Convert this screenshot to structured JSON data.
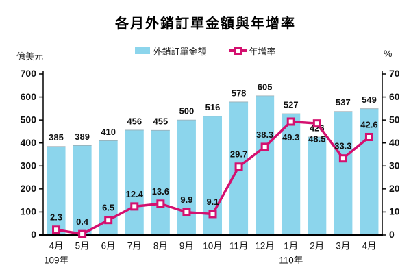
{
  "title": "各月外銷訂單金額與年增率",
  "left_unit": "億美元",
  "right_unit": "%",
  "legend": [
    {
      "label": "外銷訂單金額",
      "swatch": "bar-swatch-icon"
    },
    {
      "label": "年增率",
      "swatch": "line-marker-icon"
    }
  ],
  "chart_data": {
    "type": "bar+line",
    "title": "各月外銷訂單金額與年增率",
    "categories": [
      "4月",
      "5月",
      "6月",
      "7月",
      "8月",
      "9月",
      "10月",
      "11月",
      "12月",
      "1月",
      "2月",
      "3月",
      "4月"
    ],
    "year_labels": [
      {
        "text": "109年",
        "slot": 0
      },
      {
        "text": "110年",
        "slot": 9
      }
    ],
    "series": [
      {
        "name": "外銷訂單金額",
        "type": "bar",
        "axis": "left",
        "values": [
          385,
          389,
          410,
          456,
          455,
          500,
          516,
          578,
          605,
          527,
          426,
          537,
          549
        ]
      },
      {
        "name": "年增率",
        "type": "line",
        "axis": "right",
        "values": [
          2.3,
          0.4,
          6.5,
          12.4,
          13.6,
          9.9,
          9.1,
          29.7,
          38.3,
          49.3,
          48.5,
          33.3,
          42.6
        ],
        "label_position": [
          "above",
          "above",
          "above",
          "above",
          "above",
          "above",
          "above",
          "above",
          "above",
          "below",
          "below",
          "above",
          "above"
        ]
      }
    ],
    "left_axis": {
      "label": "億美元",
      "min": 0,
      "max": 700,
      "step": 100
    },
    "right_axis": {
      "label": "%",
      "min": 0,
      "max": 70,
      "step": 10
    },
    "grid": false,
    "legend_position": "top",
    "colors": {
      "bar": "#8CD5EC",
      "bar_top_edge": "#9aabb2",
      "line": "#D4106F",
      "marker_fill": "#FFFFFF",
      "text": "#111111"
    }
  }
}
